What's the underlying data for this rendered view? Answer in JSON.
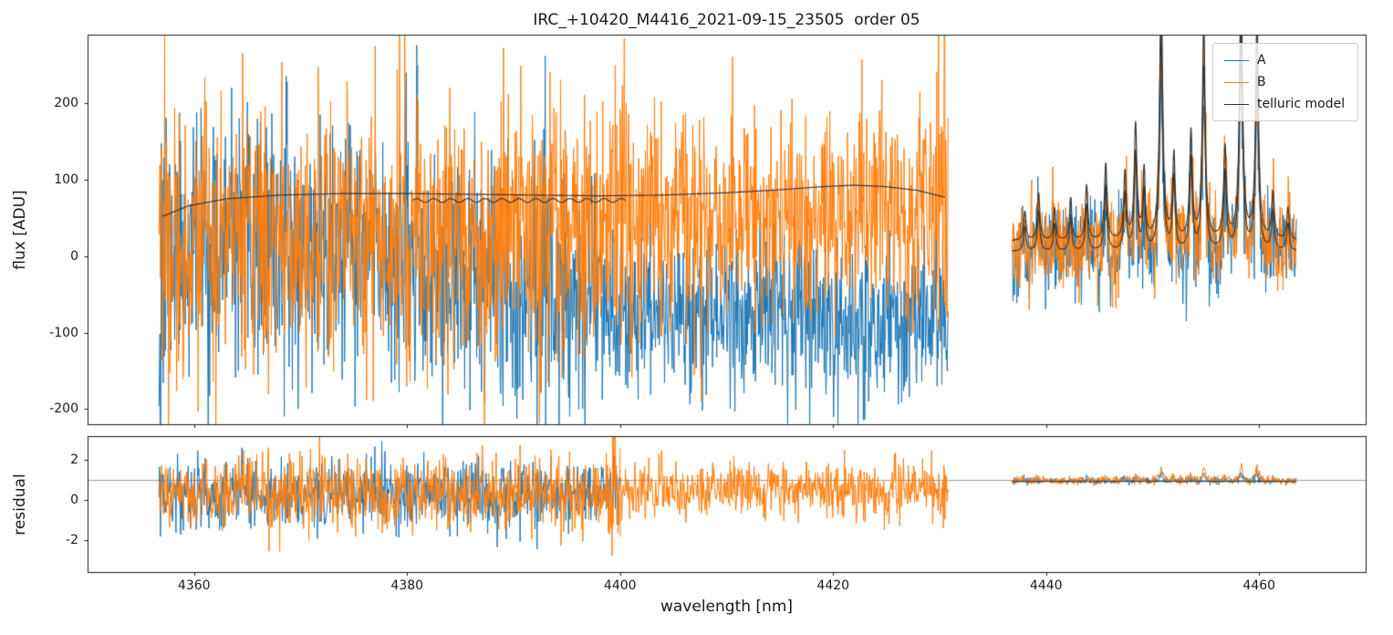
{
  "figure": {
    "background": "#ffffff"
  },
  "chart_data": {
    "type": "line",
    "title": "IRC_+10420_M4416_2021-09-15_23505  order 05",
    "xlabel": "wavelength [nm]",
    "xlim": [
      4350,
      4470
    ],
    "xticks": [
      4360,
      4380,
      4400,
      4420,
      4440,
      4460
    ],
    "grid": false,
    "legend_position": "upper right",
    "panels": [
      {
        "name": "flux",
        "ylabel": "flux [ADU]",
        "ylim": [
          -220,
          290
        ],
        "yticks": [
          -200,
          -100,
          0,
          100,
          200
        ]
      },
      {
        "name": "residual",
        "ylabel": "residual",
        "ylim": [
          -3.6,
          3.2
        ],
        "yticks": [
          -2,
          0,
          2
        ],
        "hline": 1.0,
        "hline_color": "#9b9b9b"
      }
    ],
    "legend": [
      {
        "label": "A",
        "color": "#1f77b4"
      },
      {
        "label": "B",
        "color": "#ff7f0e"
      },
      {
        "label": "telluric model",
        "color": "#333333"
      }
    ],
    "series": [
      {
        "name": "A flux",
        "panel": "flux",
        "color": "#1f77b4",
        "seed": 11,
        "step": 0.045,
        "segments": [
          {
            "x0": 4356.7,
            "x1": 4381.0,
            "mean": [
              8,
              0
            ],
            "sigma": 80
          },
          {
            "x0": 4381.0,
            "x1": 4399.0,
            "mean": [
              -35,
              -45
            ],
            "sigma": 76
          },
          {
            "x0": 4399.0,
            "x1": 4430.8,
            "mean": [
              -70,
              -85
            ],
            "sigma": 55
          },
          {
            "x0": 4436.8,
            "x1": 4463.5,
            "mean": [
              -2,
              -2
            ],
            "sigma": 30,
            "follow": 0.7
          }
        ],
        "edge_boost": [
          {
            "x": 4356.9,
            "w": 0.4,
            "k": 2.6
          },
          {
            "x": 4392.9,
            "w": 0.15,
            "k": 2.2
          }
        ]
      },
      {
        "name": "B flux",
        "panel": "flux",
        "color": "#ff7f0e",
        "seed": 22,
        "step": 0.045,
        "segments": [
          {
            "x0": 4356.7,
            "x1": 4381.0,
            "mean": [
              22,
              28
            ],
            "sigma": 86
          },
          {
            "x0": 4381.0,
            "x1": 4399.0,
            "mean": [
              28,
              32
            ],
            "sigma": 88
          },
          {
            "x0": 4399.0,
            "x1": 4430.8,
            "mean": [
              50,
              58
            ],
            "sigma": 70
          },
          {
            "x0": 4436.8,
            "x1": 4463.5,
            "mean": [
              4,
              4
            ],
            "sigma": 32,
            "follow": 0.85
          }
        ],
        "edge_boost": [
          {
            "x": 4400.2,
            "w": 0.6,
            "k": 2.0
          },
          {
            "x": 4424.6,
            "w": 0.3,
            "k": 1.8
          },
          {
            "x": 4430.3,
            "w": 0.5,
            "k": 2.0
          }
        ]
      },
      {
        "name": "A residual",
        "panel": "residual",
        "color": "#1f77b4",
        "seed": 33,
        "step": 0.05,
        "segments": [
          {
            "x0": 4356.7,
            "x1": 4400.0,
            "mean": [
              0.25,
              0.25
            ],
            "sigma": 0.85
          },
          {
            "x0": 4436.8,
            "x1": 4463.5,
            "mean": [
              0.95,
              0.95
            ],
            "sigma": 0.09,
            "follow": 0.0012
          }
        ],
        "edge_boost": [
          {
            "x": 4356.9,
            "w": 0.4,
            "k": 1.8
          }
        ]
      },
      {
        "name": "B residual",
        "panel": "residual",
        "color": "#ff7f0e",
        "seed": 44,
        "step": 0.05,
        "segments": [
          {
            "x0": 4356.7,
            "x1": 4400.0,
            "mean": [
              0.3,
              0.3
            ],
            "sigma": 0.9
          },
          {
            "x0": 4400.0,
            "x1": 4430.8,
            "mean": [
              0.45,
              0.5
            ],
            "sigma": 0.7
          },
          {
            "x0": 4436.8,
            "x1": 4463.5,
            "mean": [
              0.95,
              0.95
            ],
            "sigma": 0.12,
            "follow": 0.002
          }
        ],
        "edge_boost": [
          {
            "x": 4399.6,
            "w": 0.7,
            "k": 2.0
          },
          {
            "x": 4430.4,
            "w": 0.5,
            "k": 1.7
          }
        ]
      }
    ],
    "telluric_model": {
      "color": "#333333",
      "continuum": [
        [
          4357.0,
          52
        ],
        [
          4359.5,
          66
        ],
        [
          4363,
          75
        ],
        [
          4368,
          80
        ],
        [
          4374,
          82
        ],
        [
          4380,
          82
        ],
        [
          4386,
          81
        ],
        [
          4392,
          80
        ],
        [
          4398,
          79
        ],
        [
          4404,
          80
        ],
        [
          4410,
          83
        ],
        [
          4415,
          87
        ],
        [
          4419,
          91
        ],
        [
          4422,
          93
        ],
        [
          4425,
          91
        ],
        [
          4428,
          86
        ],
        [
          4430.5,
          77
        ]
      ],
      "second_strand": {
        "x0": 4380.5,
        "x1": 4400.5,
        "y": 73,
        "amp": 2.5,
        "period": 1.6
      },
      "chunk2": {
        "x0": 4436.8,
        "x1": 4463.5,
        "baseline": 20,
        "baseline2": 6,
        "peak_scale2": 0.85,
        "residual_level": 0.93
      },
      "peaks": [
        {
          "x": 4438.0,
          "a": 38,
          "w": 0.14
        },
        {
          "x": 4439.3,
          "a": 62,
          "w": 0.14
        },
        {
          "x": 4440.8,
          "a": 42,
          "w": 0.13
        },
        {
          "x": 4442.3,
          "a": 55,
          "w": 0.13
        },
        {
          "x": 4443.8,
          "a": 72,
          "w": 0.14
        },
        {
          "x": 4445.6,
          "a": 100,
          "w": 0.15
        },
        {
          "x": 4447.4,
          "a": 88,
          "w": 0.14
        },
        {
          "x": 4448.4,
          "a": 150,
          "w": 0.15
        },
        {
          "x": 4449.2,
          "a": 90,
          "w": 0.13
        },
        {
          "x": 4450.8,
          "a": 330,
          "w": 0.17
        },
        {
          "x": 4452.0,
          "a": 110,
          "w": 0.14
        },
        {
          "x": 4453.6,
          "a": 140,
          "w": 0.15
        },
        {
          "x": 4454.8,
          "a": 280,
          "w": 0.16
        },
        {
          "x": 4456.8,
          "a": 120,
          "w": 0.16
        },
        {
          "x": 4458.3,
          "a": 340,
          "w": 0.17
        },
        {
          "x": 4459.8,
          "a": 290,
          "w": 0.16
        },
        {
          "x": 4461.3,
          "a": 60,
          "w": 0.15
        },
        {
          "x": 4462.7,
          "a": 42,
          "w": 0.14
        }
      ]
    }
  }
}
